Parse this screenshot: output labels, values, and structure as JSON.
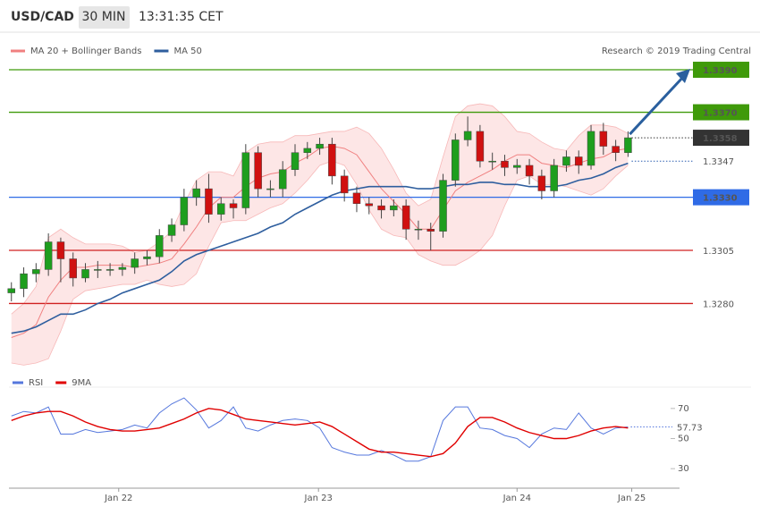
{
  "header": {
    "symbol": "USD/CAD",
    "interval": "30 MIN",
    "time": "13:31:35 CET"
  },
  "chart_data": [
    {
      "type": "candlestick",
      "credit": "Research © 2019 Trading Central",
      "xlim": [
        -0.2,
        54.9
      ],
      "ylim": [
        1.3244,
        1.3406
      ],
      "up_color": "#1e9e1e",
      "down_color": "#d01010",
      "ohlc": {
        "open": [
          1.3285,
          1.3287,
          1.3294,
          1.3296,
          1.3309,
          1.3301,
          1.3292,
          1.3296,
          1.3296,
          1.3296,
          1.3297,
          1.3301,
          1.3302,
          1.3312,
          1.3317,
          1.333,
          1.3334,
          1.3322,
          1.3327,
          1.3325,
          1.3351,
          1.3334,
          1.3334,
          1.3343,
          1.3351,
          1.3353,
          1.3355,
          1.334,
          1.3332,
          1.3327,
          1.3326,
          1.3324,
          1.3326,
          1.3315,
          1.3315,
          1.3314,
          1.3338,
          1.3357,
          1.3361,
          1.3347,
          1.3347,
          1.3344,
          1.3345,
          1.334,
          1.3333,
          1.3345,
          1.3349,
          1.3345,
          1.3361,
          1.3354,
          1.3351
        ],
        "high": [
          1.329,
          1.3297,
          1.3299,
          1.3313,
          1.3311,
          1.3304,
          1.3299,
          1.33,
          1.3299,
          1.3299,
          1.3304,
          1.3305,
          1.3315,
          1.332,
          1.3334,
          1.3338,
          1.3341,
          1.333,
          1.3329,
          1.3355,
          1.3354,
          1.3338,
          1.3347,
          1.3355,
          1.3356,
          1.3358,
          1.3358,
          1.3343,
          1.3335,
          1.333,
          1.3329,
          1.3329,
          1.3329,
          1.3319,
          1.3318,
          1.3341,
          1.336,
          1.3368,
          1.3364,
          1.3351,
          1.335,
          1.3348,
          1.3348,
          1.3343,
          1.3348,
          1.3352,
          1.3352,
          1.3364,
          1.3365,
          1.3357,
          1.3361
        ],
        "low": [
          1.3281,
          1.3283,
          1.329,
          1.3293,
          1.329,
          1.3288,
          1.329,
          1.3292,
          1.3293,
          1.3293,
          1.3294,
          1.3298,
          1.3299,
          1.3309,
          1.3314,
          1.3326,
          1.3318,
          1.3319,
          1.332,
          1.3322,
          1.333,
          1.333,
          1.333,
          1.334,
          1.3348,
          1.335,
          1.3336,
          1.3328,
          1.3323,
          1.3322,
          1.332,
          1.3321,
          1.331,
          1.331,
          1.3305,
          1.3311,
          1.3335,
          1.3354,
          1.3344,
          1.3343,
          1.334,
          1.3341,
          1.3336,
          1.3329,
          1.333,
          1.3342,
          1.3341,
          1.3343,
          1.335,
          1.3347,
          1.3349
        ],
        "close": [
          1.3287,
          1.3294,
          1.3296,
          1.3309,
          1.3301,
          1.3292,
          1.3296,
          1.3296,
          1.3296,
          1.3297,
          1.3301,
          1.3302,
          1.3312,
          1.3317,
          1.333,
          1.3334,
          1.3322,
          1.3327,
          1.3325,
          1.3351,
          1.3334,
          1.3334,
          1.3343,
          1.3351,
          1.3353,
          1.3355,
          1.334,
          1.3332,
          1.3327,
          1.3326,
          1.3324,
          1.3326,
          1.3315,
          1.3315,
          1.3314,
          1.3338,
          1.3357,
          1.3361,
          1.3347,
          1.3347,
          1.3344,
          1.3345,
          1.334,
          1.3333,
          1.3345,
          1.3349,
          1.3345,
          1.3361,
          1.3354,
          1.3351,
          1.3358
        ]
      },
      "series": [
        {
          "name": "MA 20 + Bollinger Bands",
          "color": "#f08080",
          "values": [
            1.3264,
            1.3266,
            1.327,
            1.3283,
            1.3291,
            1.3297,
            1.3297,
            1.3298,
            1.3298,
            1.3298,
            1.3297,
            1.3298,
            1.3299,
            1.3301,
            1.3308,
            1.3316,
            1.3325,
            1.333,
            1.333,
            1.3335,
            1.3339,
            1.3341,
            1.3342,
            1.3346,
            1.3349,
            1.3353,
            1.3354,
            1.3353,
            1.335,
            1.3342,
            1.3334,
            1.3328,
            1.3322,
            1.3315,
            1.3315,
            1.3324,
            1.3333,
            1.3337,
            1.334,
            1.3343,
            1.3347,
            1.335,
            1.335,
            1.3346,
            1.3345,
            1.3344,
            1.3346,
            1.3348,
            1.3349,
            1.3352,
            1.3353
          ],
          "upper": [
            1.3275,
            1.328,
            1.3288,
            1.3311,
            1.3315,
            1.3311,
            1.3308,
            1.3308,
            1.3308,
            1.3307,
            1.3304,
            1.3305,
            1.3309,
            1.3314,
            1.3327,
            1.3338,
            1.3342,
            1.3342,
            1.334,
            1.3351,
            1.3355,
            1.3356,
            1.3356,
            1.3359,
            1.3359,
            1.336,
            1.3361,
            1.3361,
            1.3363,
            1.336,
            1.3353,
            1.3343,
            1.3332,
            1.3326,
            1.3329,
            1.3349,
            1.3368,
            1.3373,
            1.3374,
            1.3373,
            1.3368,
            1.3361,
            1.336,
            1.3356,
            1.3353,
            1.3352,
            1.3359,
            1.3364,
            1.3364,
            1.3363,
            1.336
          ],
          "lower": [
            1.3252,
            1.3251,
            1.3252,
            1.3254,
            1.3267,
            1.3282,
            1.3286,
            1.3287,
            1.3288,
            1.3289,
            1.3289,
            1.3291,
            1.3289,
            1.3288,
            1.3289,
            1.3294,
            1.3307,
            1.3318,
            1.3319,
            1.3319,
            1.3322,
            1.3325,
            1.3327,
            1.3332,
            1.3338,
            1.3345,
            1.3347,
            1.3345,
            1.3336,
            1.3324,
            1.3315,
            1.3312,
            1.3311,
            1.3303,
            1.33,
            1.3298,
            1.3298,
            1.3301,
            1.3305,
            1.3312,
            1.3326,
            1.3338,
            1.334,
            1.3336,
            1.3336,
            1.3335,
            1.3333,
            1.3331,
            1.3334,
            1.334,
            1.3345
          ]
        },
        {
          "name": "MA 50",
          "color": "#2e5e9e",
          "values": [
            1.3266,
            1.3267,
            1.3269,
            1.3272,
            1.3275,
            1.3275,
            1.3277,
            1.328,
            1.3282,
            1.3285,
            1.3287,
            1.3289,
            1.3291,
            1.3295,
            1.33,
            1.3303,
            1.3305,
            1.3307,
            1.3309,
            1.3311,
            1.3313,
            1.3316,
            1.3318,
            1.3322,
            1.3325,
            1.3328,
            1.3331,
            1.3333,
            1.3334,
            1.3335,
            1.3335,
            1.3335,
            1.3335,
            1.3334,
            1.3334,
            1.3335,
            1.3336,
            1.3336,
            1.3337,
            1.3337,
            1.3336,
            1.3336,
            1.3335,
            1.3335,
            1.3335,
            1.3336,
            1.3338,
            1.3339,
            1.3341,
            1.3344,
            1.3346
          ]
        }
      ],
      "levels": [
        {
          "value": 1.339,
          "label": "1.3390",
          "color": "#3f9a0a",
          "style": "solid",
          "box": "filled"
        },
        {
          "value": 1.337,
          "label": "1.3370",
          "color": "#3f9a0a",
          "style": "solid",
          "box": "filled"
        },
        {
          "value": 1.3358,
          "color": "#333333",
          "style": "dotted",
          "box": "filled"
        },
        {
          "value": 1.3347,
          "color": "#2a5db0",
          "style": "dotted",
          "box": "outline"
        },
        {
          "value": 1.333,
          "label": "1.3330",
          "color": "#2f6be6",
          "style": "solid",
          "box": "filled"
        },
        {
          "value": 1.3305,
          "color": "#d02020",
          "style": "solid",
          "box": "outline"
        },
        {
          "value": 1.328,
          "label": "1.3280",
          "color": "#d02020",
          "style": "solid",
          "box": "outline"
        }
      ]
    },
    {
      "type": "line",
      "xlim": [
        -0.2,
        54.9
      ],
      "ylim": [
        20,
        80
      ],
      "yticks": [
        70,
        50,
        30
      ],
      "xticks": [
        {
          "value": 8.7,
          "label": "Jan 22"
        },
        {
          "value": 24.9,
          "label": "Jan 23"
        },
        {
          "value": 41.0,
          "label": "Jan 24"
        },
        {
          "value": 50.3,
          "label": "Jan 25"
        }
      ],
      "series": [
        {
          "name": "RSI",
          "color": "#5577dd",
          "values": [
            65,
            68,
            67,
            71,
            53,
            53,
            56,
            54,
            55,
            56,
            59,
            57,
            67,
            73,
            77,
            69,
            57,
            62,
            71,
            57,
            55,
            59,
            62,
            63,
            62,
            57,
            44,
            41,
            39,
            39,
            42,
            39,
            35,
            35,
            38,
            62,
            71,
            71,
            57,
            56,
            52,
            50,
            44,
            53,
            57,
            56,
            67,
            57,
            53,
            57,
            57.73
          ]
        },
        {
          "name": "9MA",
          "color": "#e00000",
          "values": [
            62,
            65,
            67,
            68,
            68,
            65,
            61,
            58,
            56,
            55,
            55,
            56,
            57,
            60,
            63,
            67,
            70,
            69,
            66,
            63,
            62,
            61,
            60,
            59,
            60,
            61,
            58,
            53,
            48,
            43,
            41,
            41,
            40,
            39,
            38,
            40,
            47,
            58,
            64,
            64,
            61,
            57,
            54,
            52,
            50,
            50,
            52,
            55,
            57,
            58,
            57
          ]
        }
      ]
    }
  ]
}
